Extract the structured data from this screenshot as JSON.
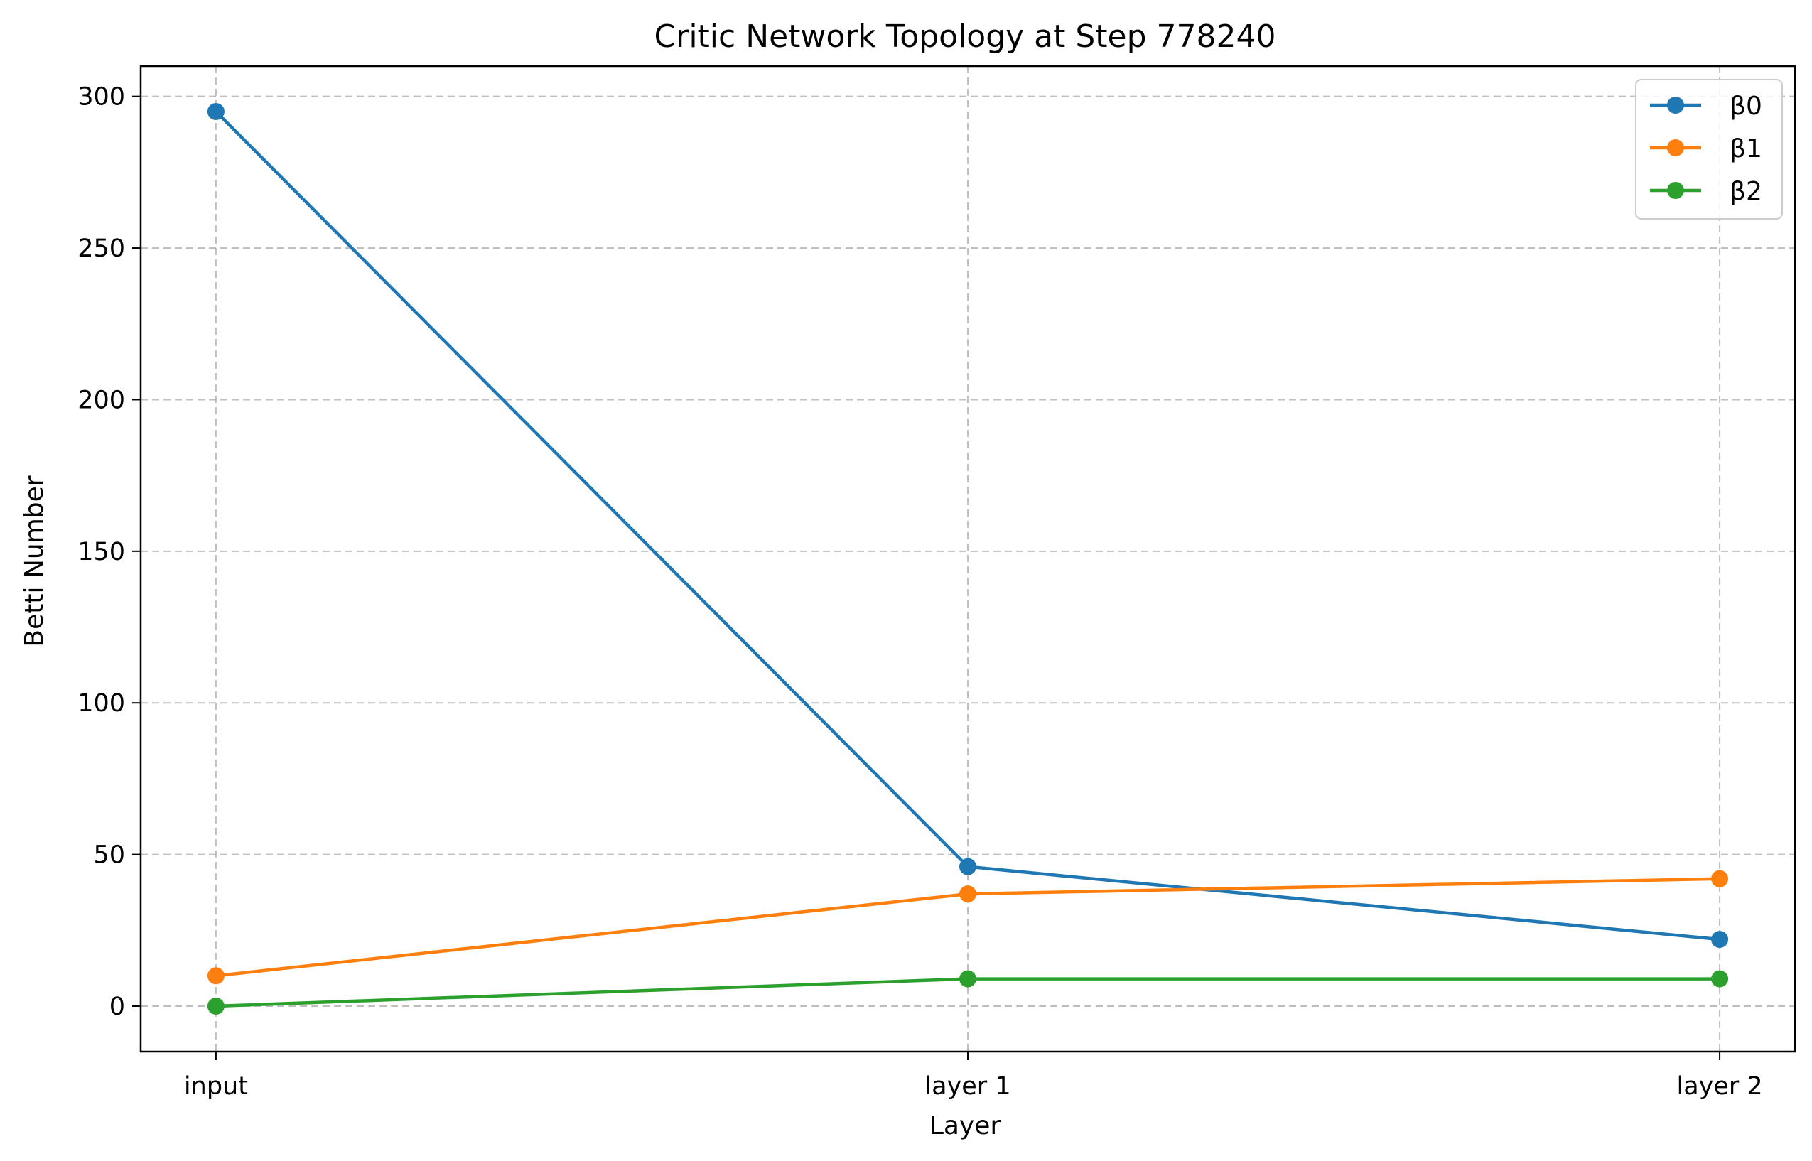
{
  "chart_data": {
    "type": "line",
    "title": "Critic Network Topology at Step 778240",
    "xlabel": "Layer",
    "ylabel": "Betti Number",
    "categories": [
      "input",
      "layer 1",
      "layer 2"
    ],
    "ylim": [
      -15,
      310
    ],
    "yticks": [
      0,
      50,
      100,
      150,
      200,
      250,
      300
    ],
    "ytick_labels": [
      "0",
      "50",
      "100",
      "150",
      "200",
      "250",
      "300"
    ],
    "grid": true,
    "legend_position": "top-right",
    "series": [
      {
        "name": "β0",
        "color": "#1f77b4",
        "values": [
          295,
          46,
          22
        ]
      },
      {
        "name": "β1",
        "color": "#ff7f0e",
        "values": [
          10,
          37,
          42
        ]
      },
      {
        "name": "β2",
        "color": "#2ca02c",
        "values": [
          0,
          9,
          9
        ]
      }
    ]
  }
}
